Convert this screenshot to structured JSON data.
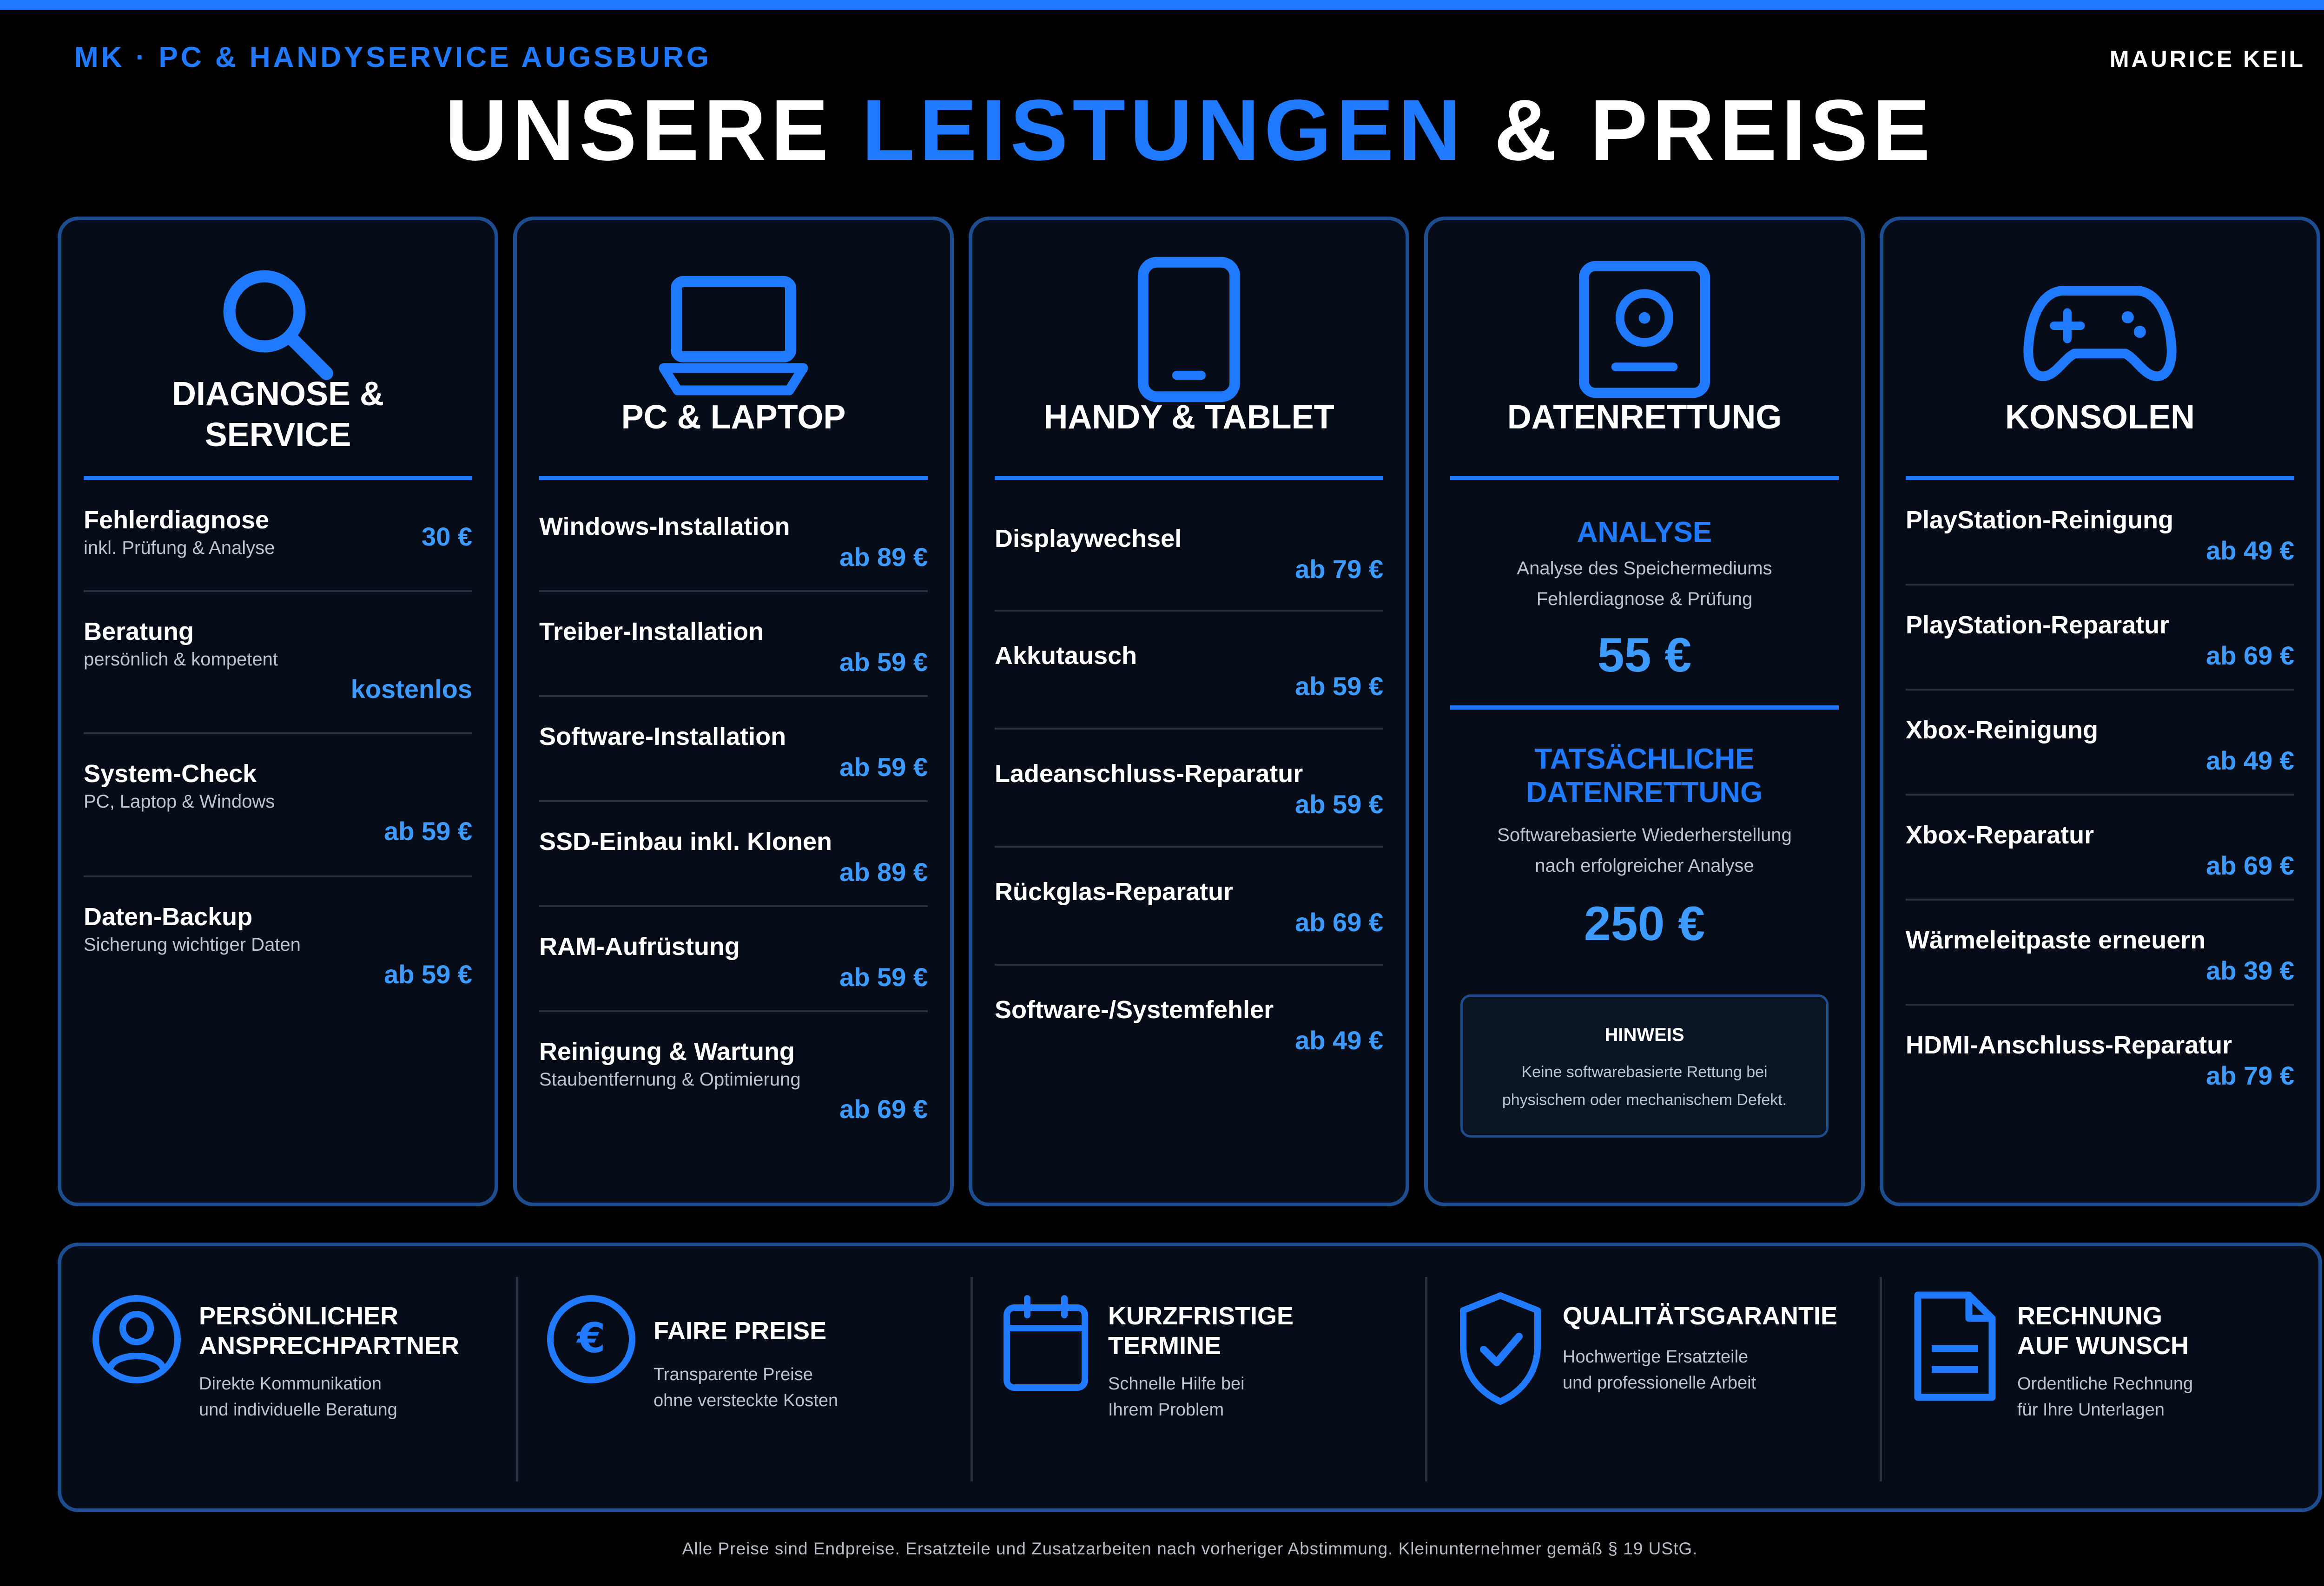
{
  "header": {
    "brand": "MK · PC & HANDYSERVICE AUGSBURG",
    "owner": "MAURICE KEIL",
    "title_part1": "UNSERE",
    "title_accent": "LEISTUNGEN",
    "title_part2": "& PREISE"
  },
  "colors": {
    "accent": "#1f7aff",
    "price": "#3d9bff",
    "border": "#1d4d8f",
    "background": "#000000",
    "panel": "#070d18"
  },
  "cards": {
    "diagnose": {
      "icon": "search-icon",
      "title_line1": "DIAGNOSE &",
      "title_line2": "SERVICE",
      "items": [
        {
          "name": "Fehlerdiagnose",
          "sub": "inkl. Prüfung & Analyse",
          "price": "30 €"
        },
        {
          "name": "Beratung",
          "sub": "persönlich & kompetent",
          "price": "kostenlos"
        },
        {
          "name": "System-Check",
          "sub": "PC, Laptop & Windows",
          "price": "ab 59 €"
        },
        {
          "name": "Daten-Backup",
          "sub": "Sicherung wichtiger Daten",
          "price": "ab 59 €"
        }
      ]
    },
    "pc": {
      "icon": "laptop-icon",
      "title": "PC & LAPTOP",
      "items": [
        {
          "name": "Windows-Installation",
          "price": "ab 89 €"
        },
        {
          "name": "Treiber-Installation",
          "price": "ab 59 €"
        },
        {
          "name": "Software-Installation",
          "price": "ab 59 €"
        },
        {
          "name": "SSD-Einbau inkl. Klonen",
          "price": "ab 89 €"
        },
        {
          "name": "RAM-Aufrüstung",
          "price": "ab 59 €"
        },
        {
          "name": "Reinigung & Wartung",
          "sub": "Staubentfernung & Optimierung",
          "price": "ab 69 €"
        }
      ]
    },
    "handy": {
      "icon": "tablet-icon",
      "title": "HANDY & TABLET",
      "items": [
        {
          "name": "Displaywechsel",
          "price": "ab 79 €"
        },
        {
          "name": "Akkutausch",
          "price": "ab 59 €"
        },
        {
          "name": "Ladeanschluss-Reparatur",
          "price": "ab 59 €"
        },
        {
          "name": "Rückglas-Reparatur",
          "price": "ab 69 €"
        },
        {
          "name": "Software-/Systemfehler",
          "price": "ab 49 €"
        }
      ]
    },
    "daten": {
      "icon": "hard-drive-icon",
      "title": "DATENRETTUNG",
      "analyse_title": "ANALYSE",
      "analyse_line1": "Analyse des Speichermediums",
      "analyse_line2": "Fehlerdiagnose & Prüfung",
      "analyse_price": "55 €",
      "rettung_title_line1": "TATSÄCHLICHE",
      "rettung_title_line2": "DATENRETTUNG",
      "rettung_line1": "Softwarebasierte Wiederherstellung",
      "rettung_line2": "nach erfolgreicher Analyse",
      "rettung_price": "250 €",
      "note_title": "HINWEIS",
      "note_line1": "Keine softwarebasierte Rettung bei",
      "note_line2": "physischem oder mechanischem Defekt."
    },
    "konsolen": {
      "icon": "gamepad-icon",
      "title": "KONSOLEN",
      "items": [
        {
          "name": "PlayStation-Reinigung",
          "price": "ab 49 €"
        },
        {
          "name": "PlayStation-Reparatur",
          "price": "ab 69 €"
        },
        {
          "name": "Xbox-Reinigung",
          "price": "ab 49 €"
        },
        {
          "name": "Xbox-Reparatur",
          "price": "ab 69 €"
        },
        {
          "name": "Wärmeleitpaste erneuern",
          "price": "ab 39 €"
        },
        {
          "name": "HDMI-Anschluss-Reparatur",
          "price": "ab 79 €"
        }
      ]
    }
  },
  "features": [
    {
      "icon": "user-icon",
      "title_line1": "PERSÖNLICHER",
      "title_line2": "ANSPRECHPARTNER",
      "text_line1": "Direkte Kommunikation",
      "text_line2": "und individuelle Beratung"
    },
    {
      "icon": "euro-icon",
      "title_line1": "FAIRE PREISE",
      "title_line2": "",
      "text_line1": "Transparente Preise",
      "text_line2": "ohne versteckte Kosten"
    },
    {
      "icon": "calendar-icon",
      "title_line1": "KURZFRISTIGE",
      "title_line2": "TERMINE",
      "text_line1": "Schnelle Hilfe bei",
      "text_line2": "Ihrem Problem"
    },
    {
      "icon": "shield-check-icon",
      "title_line1": "QUALITÄTSGARANTIE",
      "title_line2": "",
      "text_line1": "Hochwertige Ersatzteile",
      "text_line2": "und professionelle Arbeit"
    },
    {
      "icon": "document-icon",
      "title_line1": "RECHNUNG",
      "title_line2": "AUF WUNSCH",
      "text_line1": "Ordentliche Rechnung",
      "text_line2": "für Ihre Unterlagen"
    }
  ],
  "footer": {
    "note": "Alle Preise sind Endpreise. Ersatzteile und Zusatzarbeiten nach vorheriger Abstimmung. Kleinunternehmer gemäß § 19 UStG."
  }
}
